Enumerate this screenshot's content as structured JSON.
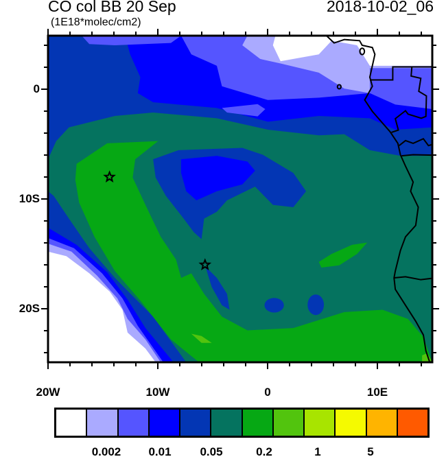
{
  "header": {
    "title": "CO col BB 20 Sep",
    "units": "(1E18*molec/cm2)",
    "datetime": "2018-10-02_06"
  },
  "map": {
    "lat_labels": [
      "0",
      "10S",
      "20S"
    ],
    "lon_labels": [
      "20W",
      "10W",
      "0",
      "10E"
    ],
    "extent": {
      "lon": [
        -20,
        15
      ],
      "lat": [
        -25,
        5
      ]
    },
    "markers": [
      {
        "type": "star",
        "lon": -14.4,
        "lat": -8.0
      },
      {
        "type": "star",
        "lon": -5.7,
        "lat": -16.0
      }
    ]
  },
  "colorbar": {
    "colors": [
      "#ffffff",
      "#aaaaff",
      "#5555ff",
      "#0000ff",
      "#0336b4",
      "#05735f",
      "#06a814",
      "#52c40e",
      "#a8e400",
      "#f5fa00",
      "#ffb400",
      "#ff5a00",
      "#ff0f00"
    ],
    "labels": [
      "0.002",
      "0.01",
      "0.05",
      "0.2",
      "1",
      "5"
    ]
  }
}
